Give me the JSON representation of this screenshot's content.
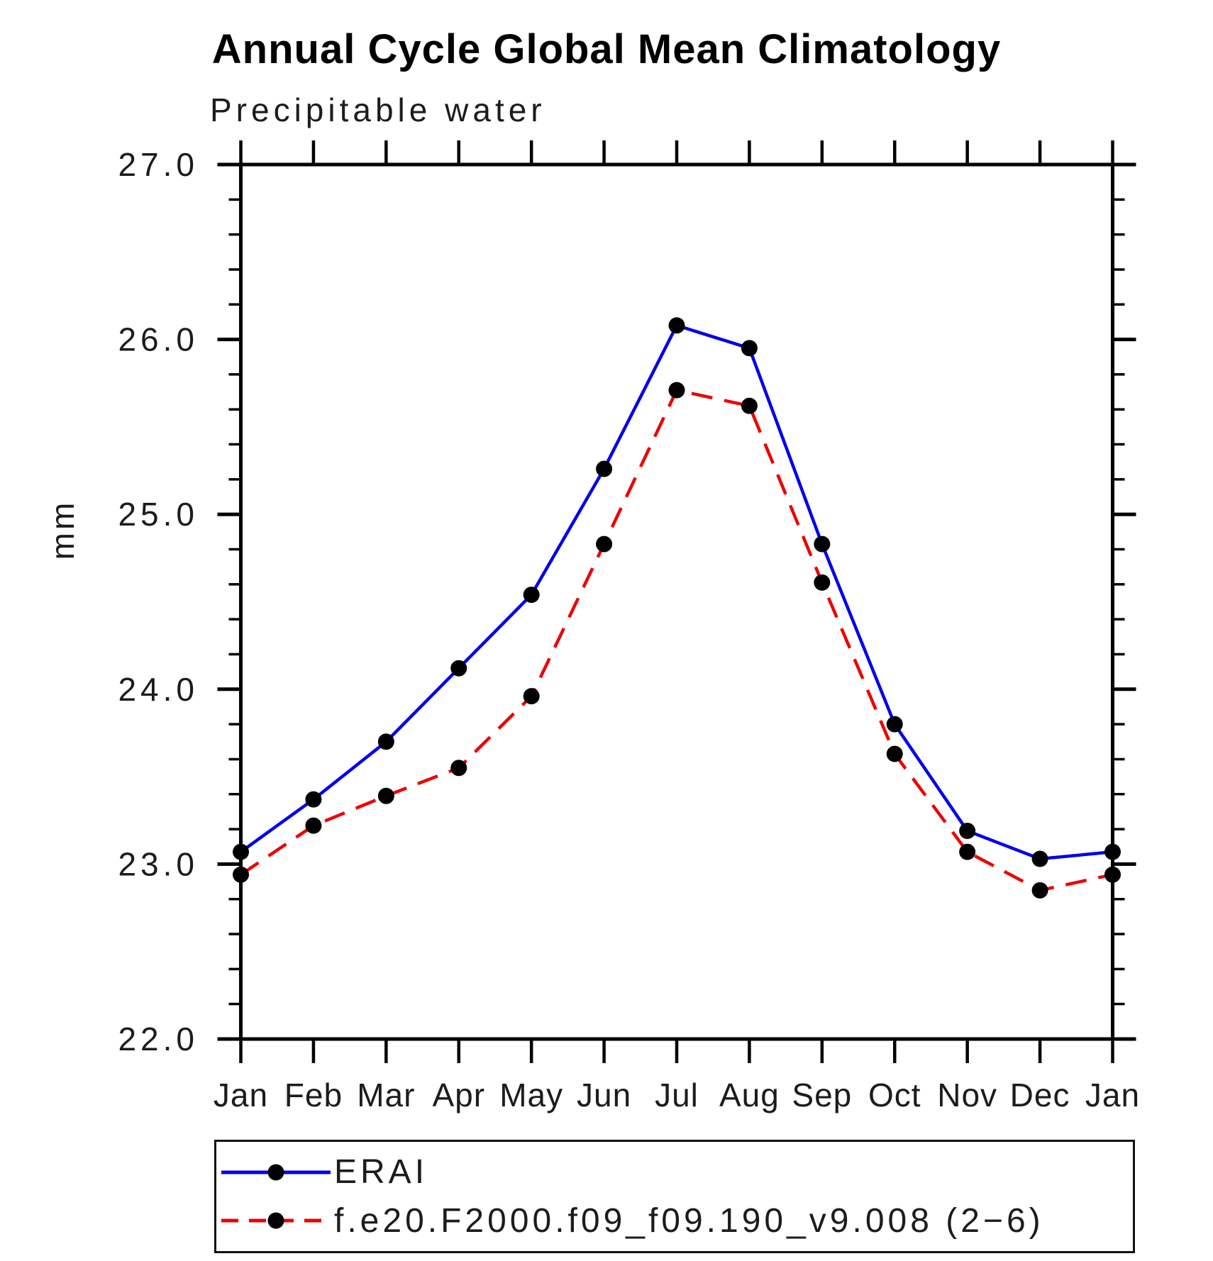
{
  "title": "Annual Cycle Global Mean Climatology",
  "subtitle": "Precipitable water",
  "chart_data": {
    "type": "line",
    "title": "Annual Cycle Global Mean Climatology",
    "subtitle": "Precipitable water",
    "ylabel": "mm",
    "xlabel": "",
    "categories": [
      "Jan",
      "Feb",
      "Mar",
      "Apr",
      "May",
      "Jun",
      "Jul",
      "Aug",
      "Sep",
      "Oct",
      "Nov",
      "Dec",
      "Jan"
    ],
    "series": [
      {
        "name": "ERAI",
        "color": "#0000ee",
        "line_style": "solid",
        "marker": "filled-circle",
        "marker_color": "#000000",
        "values": [
          23.07,
          23.37,
          23.7,
          24.12,
          24.54,
          25.26,
          26.08,
          25.95,
          24.83,
          23.8,
          23.19,
          23.03,
          23.07
        ]
      },
      {
        "name": "f.e20.F2000.f09_f09.190_v9.008 (2−6)",
        "color": "#ee0000",
        "line_style": "dashed",
        "marker": "filled-circle",
        "marker_color": "#000000",
        "values": [
          22.94,
          23.22,
          23.39,
          23.55,
          23.96,
          24.83,
          25.71,
          25.62,
          24.61,
          23.63,
          23.07,
          22.85,
          22.94
        ]
      }
    ],
    "ylim": [
      22.0,
      27.0
    ],
    "ytick_labels": [
      "22.0",
      "23.0",
      "24.0",
      "25.0",
      "26.0",
      "27.0"
    ],
    "ytick_minor_interval": 0.2,
    "grid": false,
    "legend_position": "bottom",
    "axis_color": "#000000"
  }
}
